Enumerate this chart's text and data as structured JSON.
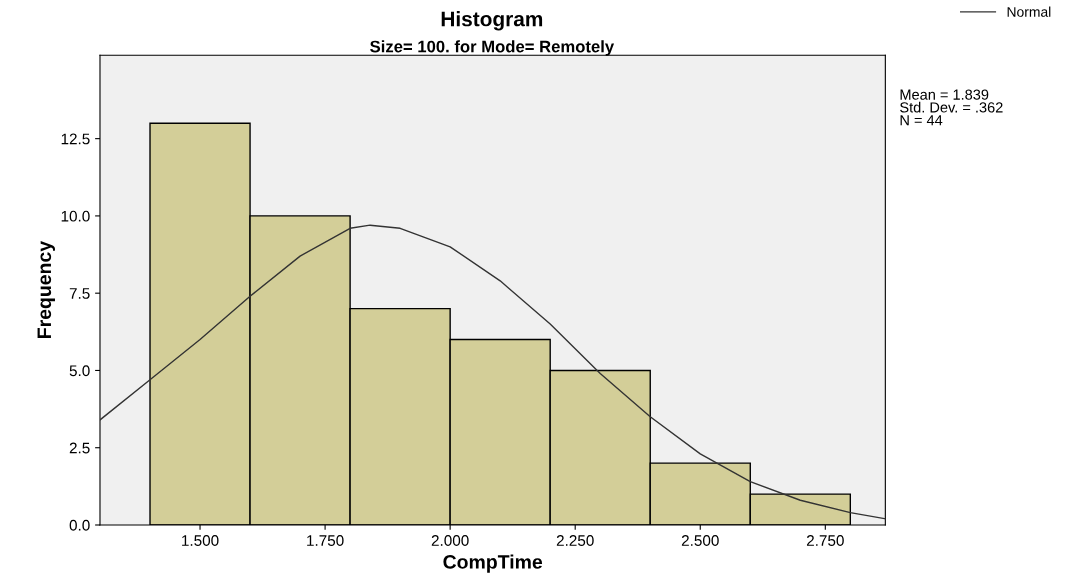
{
  "chart_data": {
    "type": "histogram",
    "title": "Histogram",
    "subtitle": "Size= 100. for Mode= Remotely",
    "xlabel": "CompTime",
    "ylabel": "Frequency",
    "bins": [
      1.4,
      1.6,
      1.8,
      2.0,
      2.2,
      2.4,
      2.6,
      2.8
    ],
    "values": [
      13,
      10,
      7,
      6,
      5,
      2,
      1
    ],
    "color": "#d3ce98",
    "series": [
      {
        "name": "Normal",
        "type": "line",
        "color": "#333333",
        "x": [
          1.3,
          1.4,
          1.5,
          1.6,
          1.7,
          1.8,
          1.84,
          1.9,
          2.0,
          2.1,
          2.2,
          2.3,
          2.4,
          2.5,
          2.6,
          2.7,
          2.8,
          2.87
        ],
        "values": [
          3.4,
          4.7,
          6.0,
          7.4,
          8.7,
          9.6,
          9.7,
          9.6,
          9.0,
          7.9,
          6.5,
          4.9,
          3.5,
          2.3,
          1.4,
          0.8,
          0.4,
          0.2
        ]
      }
    ],
    "annotations": [
      "Mean = 1.839",
      "Std. Dev. = .362",
      "N = 44"
    ],
    "xlim": [
      1.3,
      2.87
    ],
    "ylim": [
      0,
      15.2
    ],
    "xticks": [
      {
        "value": 1.5,
        "label": "1.500"
      },
      {
        "value": 1.75,
        "label": "1.750"
      },
      {
        "value": 2.0,
        "label": "2.000"
      },
      {
        "value": 2.25,
        "label": "2.250"
      },
      {
        "value": 2.5,
        "label": "2.500"
      },
      {
        "value": 2.75,
        "label": "2.750"
      }
    ],
    "yticks": [
      {
        "value": 0,
        "label": "0.0"
      },
      {
        "value": 2.5,
        "label": "2.5"
      },
      {
        "value": 5,
        "label": "5.0"
      },
      {
        "value": 7.5,
        "label": "7.5"
      },
      {
        "value": 10,
        "label": "10.0"
      },
      {
        "value": 12.5,
        "label": "12.5"
      }
    ],
    "grid": false,
    "legend": "top right"
  }
}
